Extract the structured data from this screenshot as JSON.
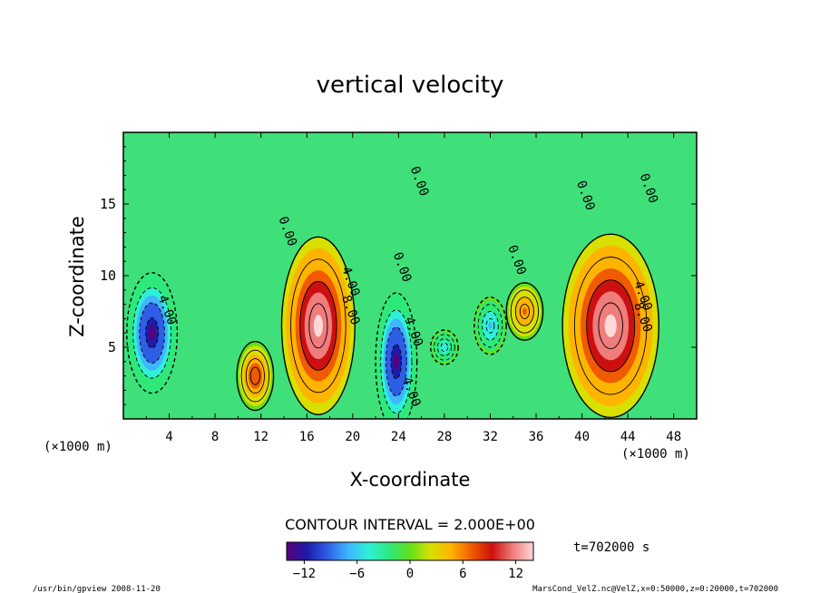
{
  "chart_data": {
    "type": "heatmap",
    "title": "vertical velocity",
    "xlabel": "X-coordinate",
    "ylabel": "Z-coordinate",
    "x_unit": "(×1000 m)",
    "y_unit": "(×1000 m)",
    "xlim": [
      0,
      50
    ],
    "ylim": [
      0,
      20
    ],
    "x_ticks": [
      "4",
      "8",
      "12",
      "16",
      "20",
      "24",
      "28",
      "32",
      "36",
      "40",
      "44",
      "48"
    ],
    "y_ticks": [
      "5",
      "10",
      "15"
    ],
    "contour_interval_text": "CONTOUR INTERVAL = 2.000E+00",
    "contour_labels": [
      "0.00",
      "0.00",
      "0.00",
      "4.00",
      "8.00",
      "4.00",
      "8.00",
      "4.00",
      "4.00",
      "4.00",
      "0.00",
      "0.00",
      "0.00"
    ],
    "colorbar": {
      "range": [
        -14,
        14
      ],
      "ticks": [
        "−12",
        "−6",
        "0",
        "6",
        "12"
      ],
      "colors": [
        "#5a007a",
        "#1c1ca8",
        "#2e5ee6",
        "#3fb6ff",
        "#2ef0d8",
        "#2ee87a",
        "#63e01e",
        "#d8e000",
        "#ffb400",
        "#f05a00",
        "#cc1010",
        "#f07c7c",
        "#ffd8d8"
      ]
    },
    "features": [
      {
        "kind": "updraft",
        "x": 17,
        "z": 6.5,
        "peak": 14
      },
      {
        "kind": "updraft",
        "x": 42.5,
        "z": 6.5,
        "peak": 14
      },
      {
        "kind": "updraft",
        "x": 11.5,
        "z": 3,
        "peak": 8
      },
      {
        "kind": "updraft",
        "x": 35,
        "z": 7.5,
        "peak": 6
      },
      {
        "kind": "downdraft",
        "x": 2.5,
        "z": 6,
        "peak": -14
      },
      {
        "kind": "downdraft",
        "x": 23.8,
        "z": 4,
        "peak": -14
      },
      {
        "kind": "downdraft",
        "x": 32,
        "z": 6.5,
        "peak": -6
      },
      {
        "kind": "downdraft",
        "x": 28,
        "z": 5,
        "peak": -5
      }
    ]
  },
  "time_label": "t=702000 s",
  "footer": {
    "left": "/usr/bin/gpview  2008-11-20",
    "right": "MarsCond_VelZ.nc@VelZ,x=0:50000,z=0:20000,t=702000"
  }
}
